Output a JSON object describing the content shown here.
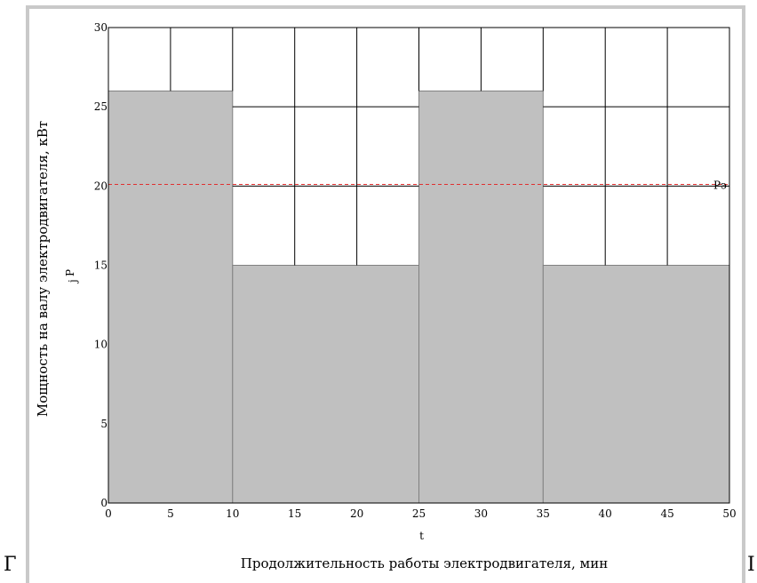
{
  "page": {
    "left_fragment": "Г",
    "right_fragment": "I"
  },
  "chart_data": {
    "type": "area",
    "title": "",
    "xlabel": "Продолжительность работы электродвигателя, мин",
    "x_var_label": "t",
    "ylabel": "Мощность на валу электродвигателя, кВт",
    "y_var_label": "P",
    "y_var_sub": "j",
    "xlim": [
      0,
      50
    ],
    "ylim": [
      0,
      30
    ],
    "x_ticks": [
      0,
      5,
      10,
      15,
      20,
      25,
      30,
      35,
      40,
      45,
      50
    ],
    "y_ticks": [
      0,
      5,
      10,
      15,
      20,
      25,
      30
    ],
    "x_tick_labels": [
      "0",
      "5",
      "10",
      "15",
      "20",
      "25",
      "30",
      "35",
      "40",
      "45",
      "50"
    ],
    "y_tick_labels": [
      "0",
      "5",
      "10",
      "15",
      "20",
      "25",
      "30"
    ],
    "grid": true,
    "series": [
      {
        "values": [
          {
            "x_start": 0,
            "x_end": 10,
            "y": 26
          },
          {
            "x_start": 10,
            "x_end": 25,
            "y": 15
          },
          {
            "x_start": 25,
            "x_end": 35,
            "y": 26
          },
          {
            "x_start": 35,
            "x_end": 50,
            "y": 15
          }
        ],
        "color": "#c0c0c0"
      }
    ],
    "reference_line": {
      "y": 20.1,
      "label": "Pэ",
      "color": "#e03030"
    }
  }
}
